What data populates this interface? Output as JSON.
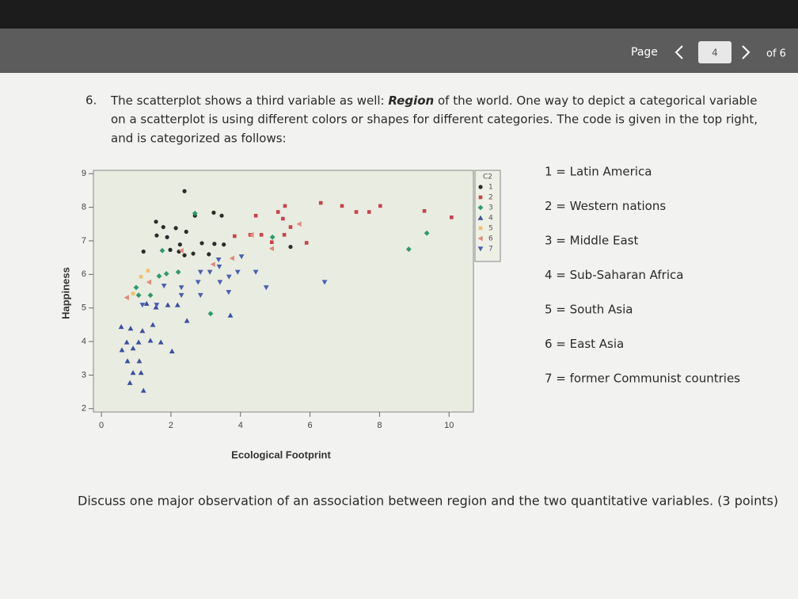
{
  "toolbar": {
    "page_label": "Page",
    "page_number": "4",
    "page_total": "of 6"
  },
  "question": {
    "number": "6.",
    "line1": [
      "The scatterplot shows a third variable as well: ",
      "Region",
      " of the world. One way to depict a categorical variable"
    ],
    "line2": "on a scatterplot is using different colors or shapes for different categories. The code is given in the top right,",
    "line3": "and is categorized as follows:"
  },
  "chart_data": {
    "type": "scatter",
    "xlabel": "Ecological Footprint",
    "ylabel": "Happiness",
    "xlim": [
      -0.23,
      10.7
    ],
    "ylim": [
      1.9,
      9.1
    ],
    "xticks": [
      0,
      2,
      4,
      6,
      8,
      10
    ],
    "yticks": [
      2,
      3,
      4,
      5,
      6,
      7,
      8,
      9
    ],
    "legend_title": "C2",
    "series": [
      {
        "name": "1",
        "color": "#2b2b2b",
        "marker": "circle",
        "x": [
          2.39,
          3.23,
          3.46,
          2.69,
          1.57,
          1.78,
          2.14,
          2.44,
          1.59,
          1.89,
          2.89,
          3.25,
          2.26,
          1.21,
          2.23,
          2.39,
          2.64,
          3.09,
          3.52,
          5.44,
          1.98
        ],
        "values": [
          8.48,
          7.84,
          7.75,
          7.75,
          7.57,
          7.41,
          7.38,
          7.27,
          7.16,
          7.11,
          6.93,
          6.91,
          6.89,
          6.68,
          6.68,
          6.57,
          6.62,
          6.6,
          6.89,
          6.82,
          6.73
        ]
      },
      {
        "name": "2",
        "color": "#c8424a",
        "marker": "square",
        "x": [
          4.44,
          5.08,
          5.28,
          5.22,
          6.31,
          6.92,
          7.33,
          7.7,
          8.02,
          9.29,
          10.07,
          3.83,
          4.28,
          4.6,
          4.9,
          5.9,
          5.44,
          5.26
        ],
        "values": [
          7.75,
          7.86,
          8.04,
          7.66,
          8.13,
          8.04,
          7.86,
          7.86,
          8.04,
          7.89,
          7.7,
          7.14,
          7.18,
          7.18,
          6.96,
          6.94,
          7.41,
          7.18
        ]
      },
      {
        "name": "3",
        "color": "#2e9a6a",
        "marker": "diamond",
        "x": [
          2.69,
          4.92,
          8.84,
          9.36,
          1.87,
          2.21,
          1.41,
          1.07,
          3.14,
          1.0,
          1.75,
          1.66
        ],
        "values": [
          7.82,
          7.11,
          6.75,
          7.23,
          6.02,
          6.07,
          5.38,
          5.38,
          4.83,
          5.61,
          6.71,
          5.95
        ]
      },
      {
        "name": "4",
        "color": "#3a4fa0",
        "marker": "triangle-up",
        "x": [
          0.57,
          0.84,
          1.18,
          0.73,
          1.07,
          1.41,
          1.71,
          0.59,
          0.91,
          2.03,
          0.91,
          1.14,
          0.82,
          1.21,
          0.75,
          1.09,
          2.46,
          3.71,
          1.48,
          1.3,
          1.91,
          2.19,
          1.57
        ],
        "values": [
          4.44,
          4.39,
          4.32,
          3.98,
          3.98,
          4.03,
          3.98,
          3.75,
          3.8,
          3.71,
          3.07,
          3.07,
          2.77,
          2.54,
          3.42,
          3.42,
          4.62,
          4.78,
          4.5,
          5.13,
          5.09,
          5.09,
          5.02
        ]
      },
      {
        "name": "5",
        "color": "#f0c070",
        "marker": "square",
        "x": [
          1.14,
          0.91,
          1.34
        ],
        "values": [
          5.93,
          5.43,
          6.11
        ]
      },
      {
        "name": "6",
        "color": "#e08a7a",
        "marker": "triangle-left",
        "x": [
          3.76,
          3.21,
          2.3,
          5.69,
          4.32,
          4.9,
          0.73,
          1.37
        ],
        "values": [
          6.48,
          6.3,
          6.71,
          7.5,
          7.18,
          6.77,
          5.31,
          5.77
        ]
      },
      {
        "name": "7",
        "color": "#4a5fb0",
        "marker": "triangle-down",
        "x": [
          2.85,
          3.12,
          3.39,
          3.67,
          3.92,
          3.41,
          2.78,
          2.3,
          2.3,
          2.85,
          3.66,
          4.44,
          4.74,
          6.42,
          1.59,
          1.18,
          1.8,
          3.37,
          4.03
        ],
        "values": [
          6.07,
          6.07,
          6.23,
          5.93,
          6.07,
          5.77,
          5.77,
          5.61,
          5.38,
          5.38,
          5.47,
          6.07,
          5.61,
          5.77,
          5.09,
          5.09,
          5.66,
          6.44,
          6.53
        ]
      }
    ]
  },
  "region_codes": [
    "1 = Latin America",
    "2 = Western nations",
    "3 = Middle East",
    "4 = Sub-Saharan Africa",
    "5 = South Asia",
    "6 = East Asia",
    "7 = former Communist countries"
  ],
  "prompt": "Discuss one major observation of an association between region and the two quantitative variables. (3 points)"
}
